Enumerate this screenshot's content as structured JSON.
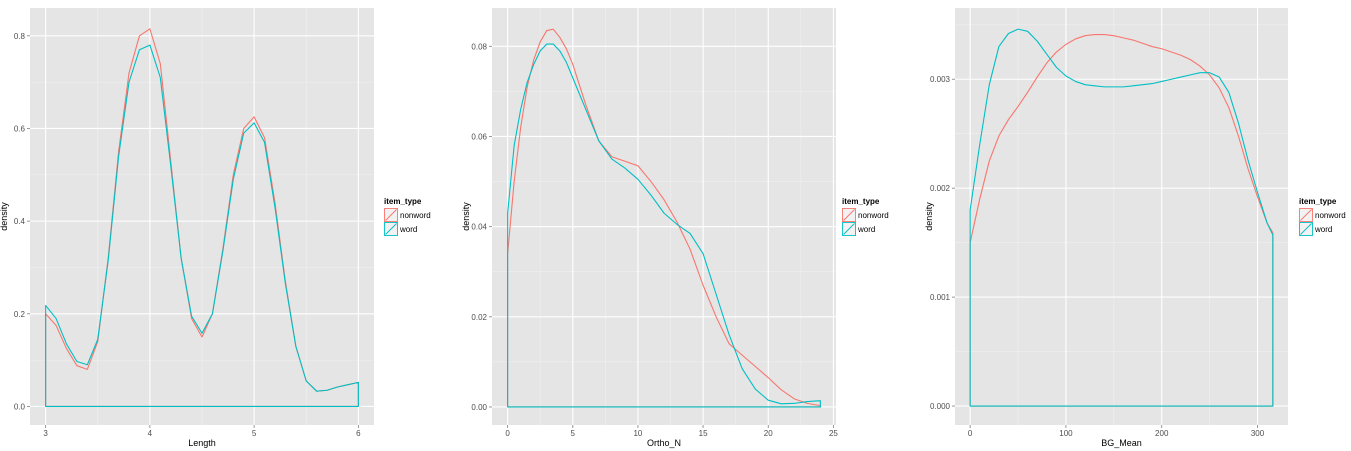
{
  "colors": {
    "nonword": "#F8766D",
    "word": "#00BFC4",
    "panel_bg": "#E5E5E5",
    "grid_major": "#FFFFFF",
    "grid_minor": "#F0F0F0"
  },
  "legend": {
    "title": "item_type",
    "entries": [
      "nonword",
      "word"
    ]
  },
  "chart_data": [
    {
      "type": "line",
      "geom": "density",
      "xlabel": "Length",
      "ylabel": "density",
      "xlim": [
        2.85,
        6.15
      ],
      "ylim": [
        -0.04,
        0.86
      ],
      "x_ticks": [
        3,
        4,
        5,
        6
      ],
      "x_tick_labels": [
        "3",
        "4",
        "5",
        "6"
      ],
      "y_ticks": [
        0.0,
        0.2,
        0.4,
        0.6,
        0.8
      ],
      "y_tick_labels": [
        "0.0",
        "0.2",
        "0.4",
        "0.6",
        "0.8"
      ],
      "grid": true,
      "legend_position": "right",
      "series": [
        {
          "name": "nonword",
          "x": [
            3.0,
            3.1,
            3.2,
            3.3,
            3.4,
            3.5,
            3.6,
            3.7,
            3.8,
            3.9,
            4.0,
            4.1,
            4.2,
            4.3,
            4.4,
            4.5,
            4.6,
            4.7,
            4.8,
            4.9,
            5.0,
            5.1,
            5.2,
            5.3,
            5.4,
            5.5,
            5.6,
            5.7,
            5.8,
            5.9,
            6.0
          ],
          "y": [
            0.2,
            0.175,
            0.125,
            0.088,
            0.08,
            0.14,
            0.32,
            0.55,
            0.72,
            0.8,
            0.815,
            0.74,
            0.53,
            0.32,
            0.19,
            0.15,
            0.2,
            0.34,
            0.5,
            0.6,
            0.625,
            0.58,
            0.44,
            0.27,
            0.13,
            0.055,
            0.033,
            0.035,
            0.042,
            0.047,
            0.052
          ]
        },
        {
          "name": "word",
          "x": [
            3.0,
            3.1,
            3.2,
            3.3,
            3.4,
            3.5,
            3.6,
            3.7,
            3.8,
            3.9,
            4.0,
            4.1,
            4.2,
            4.3,
            4.4,
            4.5,
            4.6,
            4.7,
            4.8,
            4.9,
            5.0,
            5.1,
            5.2,
            5.3,
            5.4,
            5.5,
            5.6,
            5.7,
            5.8,
            5.9,
            6.0
          ],
          "y": [
            0.218,
            0.19,
            0.135,
            0.097,
            0.09,
            0.145,
            0.315,
            0.54,
            0.7,
            0.77,
            0.78,
            0.71,
            0.52,
            0.32,
            0.195,
            0.158,
            0.2,
            0.335,
            0.49,
            0.59,
            0.612,
            0.57,
            0.43,
            0.265,
            0.13,
            0.055,
            0.033,
            0.035,
            0.042,
            0.047,
            0.052
          ]
        }
      ]
    },
    {
      "type": "line",
      "geom": "density",
      "xlabel": "Ortho_N",
      "ylabel": "density",
      "xlim": [
        -1.2,
        25.2
      ],
      "ylim": [
        -0.004,
        0.0885
      ],
      "x_ticks": [
        0,
        5,
        10,
        15,
        20,
        25
      ],
      "x_tick_labels": [
        "0",
        "5",
        "10",
        "15",
        "20",
        "25"
      ],
      "y_ticks": [
        0.0,
        0.02,
        0.04,
        0.06,
        0.08
      ],
      "y_tick_labels": [
        "0.00",
        "0.02",
        "0.04",
        "0.06",
        "0.08"
      ],
      "grid": true,
      "legend_position": "right",
      "series": [
        {
          "name": "nonword",
          "x": [
            0,
            0.5,
            1,
            1.5,
            2,
            2.5,
            3,
            3.5,
            4,
            4.5,
            5,
            6,
            7,
            8,
            9,
            10,
            11,
            12,
            13,
            14,
            15,
            16,
            17,
            18,
            19,
            20,
            21,
            22,
            23,
            24
          ],
          "y": [
            0.034,
            0.05,
            0.062,
            0.071,
            0.077,
            0.081,
            0.0835,
            0.0838,
            0.082,
            0.0795,
            0.076,
            0.067,
            0.059,
            0.0555,
            0.0545,
            0.0535,
            0.05,
            0.046,
            0.041,
            0.035,
            0.027,
            0.02,
            0.014,
            0.0115,
            0.009,
            0.0065,
            0.0038,
            0.0018,
            0.0008,
            0.0003
          ]
        },
        {
          "name": "word",
          "x": [
            0,
            0.5,
            1,
            1.5,
            2,
            2.5,
            3,
            3.5,
            4,
            4.5,
            5,
            6,
            7,
            8,
            9,
            10,
            11,
            12,
            13,
            14,
            15,
            16,
            17,
            18,
            19,
            20,
            21,
            22,
            23,
            24
          ],
          "y": [
            0.043,
            0.058,
            0.066,
            0.072,
            0.076,
            0.079,
            0.0805,
            0.0805,
            0.079,
            0.0765,
            0.073,
            0.066,
            0.059,
            0.055,
            0.053,
            0.0505,
            0.047,
            0.043,
            0.0405,
            0.0385,
            0.034,
            0.025,
            0.016,
            0.0085,
            0.004,
            0.0015,
            0.0007,
            0.0008,
            0.0012,
            0.0014
          ]
        }
      ]
    },
    {
      "type": "line",
      "geom": "density",
      "xlabel": "BG_Mean",
      "ylabel": "density",
      "xlim": [
        -15.8,
        331.8
      ],
      "ylim": [
        -0.000174,
        0.003654
      ],
      "x_ticks": [
        0,
        100,
        200,
        300
      ],
      "x_tick_labels": [
        "0",
        "100",
        "200",
        "300"
      ],
      "y_ticks": [
        0.0,
        0.001,
        0.002,
        0.003
      ],
      "y_tick_labels": [
        "0.000",
        "0.001",
        "0.002",
        "0.003"
      ],
      "grid": true,
      "legend_position": "right",
      "series": [
        {
          "name": "nonword",
          "x": [
            0,
            10,
            20,
            30,
            40,
            50,
            60,
            70,
            80,
            90,
            100,
            110,
            120,
            130,
            140,
            150,
            160,
            170,
            180,
            190,
            200,
            210,
            220,
            230,
            240,
            250,
            260,
            270,
            280,
            290,
            300,
            310,
            316
          ],
          "y": [
            0.0015,
            0.0019,
            0.00225,
            0.00248,
            0.00263,
            0.00275,
            0.00288,
            0.00302,
            0.00315,
            0.00325,
            0.00332,
            0.00337,
            0.0034,
            0.00341,
            0.00341,
            0.0034,
            0.00338,
            0.00336,
            0.00333,
            0.0033,
            0.00328,
            0.00325,
            0.00322,
            0.00318,
            0.00312,
            0.00304,
            0.00292,
            0.00274,
            0.00248,
            0.00218,
            0.00192,
            0.00168,
            0.00159
          ]
        },
        {
          "name": "word",
          "x": [
            0,
            10,
            20,
            30,
            40,
            50,
            60,
            70,
            80,
            90,
            100,
            110,
            120,
            130,
            140,
            150,
            160,
            170,
            180,
            190,
            200,
            210,
            220,
            230,
            240,
            250,
            260,
            270,
            280,
            290,
            300,
            310,
            316
          ],
          "y": [
            0.0018,
            0.0024,
            0.00295,
            0.0033,
            0.00342,
            0.00346,
            0.00344,
            0.00335,
            0.00323,
            0.00311,
            0.00303,
            0.00298,
            0.00295,
            0.00294,
            0.00293,
            0.00293,
            0.00293,
            0.00294,
            0.00295,
            0.00296,
            0.00298,
            0.003,
            0.00302,
            0.00304,
            0.00306,
            0.00306,
            0.00302,
            0.00288,
            0.0026,
            0.00226,
            0.00196,
            0.00168,
            0.00157
          ]
        }
      ]
    }
  ]
}
